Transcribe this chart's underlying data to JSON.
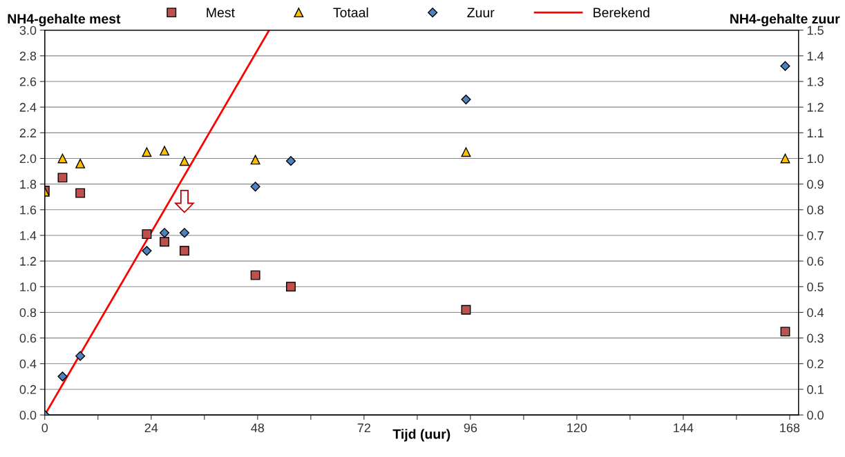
{
  "chart_data": {
    "type": "scatter",
    "xlabel": "Tijd (uur)",
    "ylabel": "NH4-gehalte mest",
    "y2label": "NH4-gehalte zuur",
    "x": [
      0,
      4,
      8,
      23,
      27,
      31.5,
      47.5,
      55.5,
      95,
      167
    ],
    "series": [
      {
        "name": "Mest",
        "color": "#c0504d",
        "marker": "square",
        "values": [
          1.75,
          1.85,
          1.73,
          1.41,
          1.35,
          1.28,
          1.09,
          1.0,
          0.82,
          0.65
        ]
      },
      {
        "name": "Totaal",
        "color": "#ffc000",
        "marker": "triangle",
        "values": [
          1.74,
          2.0,
          1.96,
          2.05,
          2.06,
          1.98,
          1.99,
          null,
          2.05,
          2.0
        ]
      },
      {
        "name": "Zuur",
        "color": "#4f81bd",
        "marker": "diamond",
        "axis": "y2",
        "values": [
          0,
          0.15,
          0.23,
          0.64,
          0.71,
          0.71,
          0.89,
          0.99,
          1.23,
          1.36
        ]
      },
      {
        "name": "Berekend",
        "type": "line",
        "color": "#ff0000",
        "marker": "none",
        "x": [
          0,
          50.6
        ],
        "values": [
          0,
          3.0
        ]
      }
    ],
    "xlim": [
      0,
      170
    ],
    "xticks": [
      0,
      {
        "value": 12,
        "label": null
      },
      24,
      {
        "value": 36,
        "label": null
      },
      48,
      {
        "value": 60,
        "label": null
      },
      72,
      {
        "value": 84,
        "label": null
      },
      96,
      {
        "value": 108,
        "label": null
      },
      120,
      {
        "value": 132,
        "label": null
      },
      144,
      {
        "value": 156,
        "label": null
      },
      168
    ],
    "ylim": [
      0,
      3.0
    ],
    "yticks": [
      {
        "value": 0,
        "label": "0.0"
      },
      0.2,
      0.4,
      0.6,
      0.8,
      {
        "value": 1,
        "label": "1.0"
      },
      1.2,
      1.4,
      1.6,
      1.8,
      {
        "value": 2,
        "label": "2.0"
      },
      2.2,
      2.4,
      2.6,
      2.8,
      {
        "value": 3,
        "label": "3.0"
      }
    ],
    "y2lim": [
      0,
      1.5
    ],
    "y2ticks": [
      {
        "value": 0,
        "label": "0.0"
      },
      0.1,
      0.2,
      0.3,
      0.4,
      0.5,
      0.6,
      0.7,
      0.8,
      0.9,
      {
        "value": 1,
        "label": "1.0"
      },
      1.1,
      1.2,
      1.3,
      1.4,
      1.5
    ],
    "grid": "y",
    "legend": "top"
  }
}
